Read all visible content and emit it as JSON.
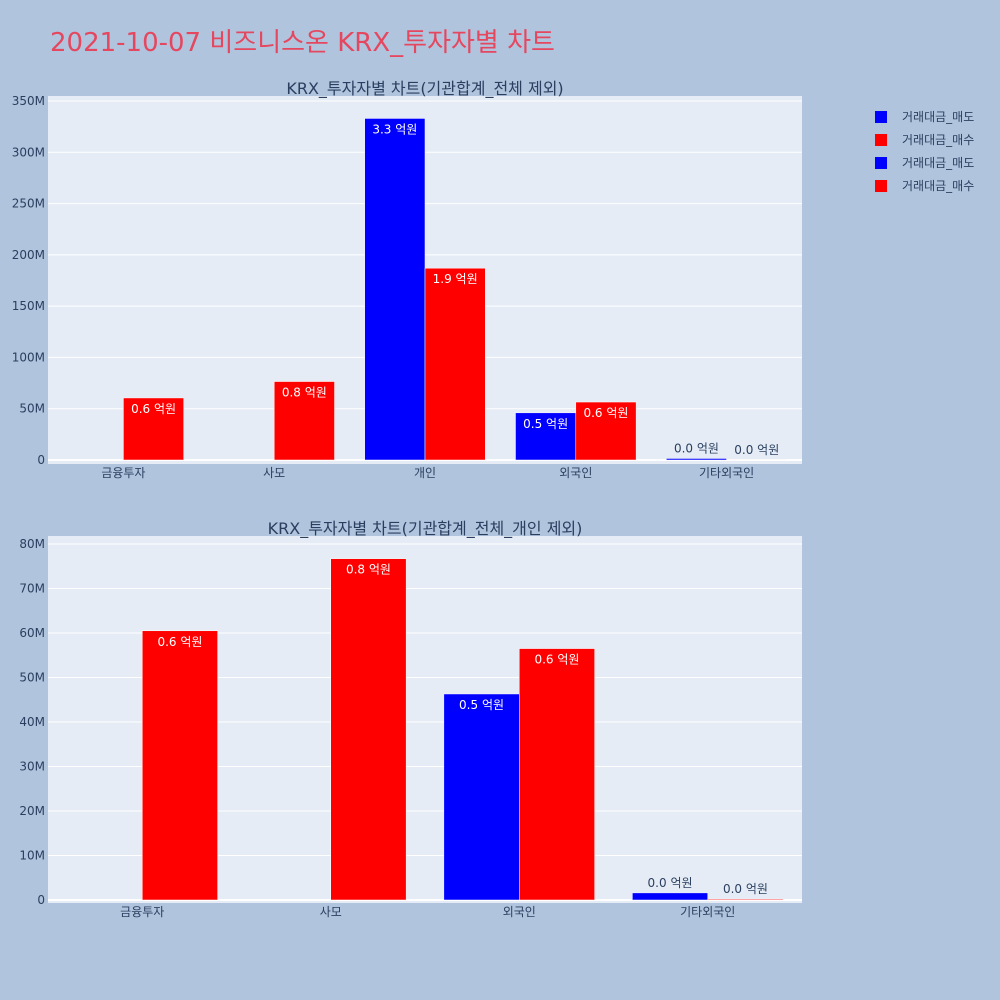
{
  "page_title": "2021-10-07 비즈니스온 KRX_투자자별 차트",
  "legend": [
    {
      "label": "거래대금_매도",
      "color": "#0000ff"
    },
    {
      "label": "거래대금_매수",
      "color": "#ff0000"
    },
    {
      "label": "거래대금_매도",
      "color": "#0000ff"
    },
    {
      "label": "거래대금_매수",
      "color": "#ff0000"
    }
  ],
  "chart_data": [
    {
      "type": "bar",
      "title": "KRX_투자자별 차트(기관합계_전체 제외)",
      "categories": [
        "금융투자",
        "사모",
        "개인",
        "외국인",
        "기타외국인"
      ],
      "series": [
        {
          "name": "거래대금_매도",
          "color": "#0000ff",
          "values": [
            0,
            0,
            333000000,
            46000000,
            1500000
          ],
          "labels": [
            "",
            "",
            "3.3 억원",
            "0.5 억원",
            "0.0 억원"
          ]
        },
        {
          "name": "거래대금_매수",
          "color": "#ff0000",
          "values": [
            60500000,
            76500000,
            187000000,
            56500000,
            200000
          ],
          "labels": [
            "0.6 억원",
            "0.8 억원",
            "1.9 억원",
            "0.6 억원",
            "0.0 억원"
          ]
        }
      ],
      "ylim": [
        0,
        350000000
      ],
      "yticks": [
        0,
        50000000,
        100000000,
        150000000,
        200000000,
        250000000,
        300000000,
        350000000
      ],
      "ytick_labels": [
        "0",
        "50M",
        "100M",
        "150M",
        "200M",
        "250M",
        "300M",
        "350M"
      ]
    },
    {
      "type": "bar",
      "title": "KRX_투자자별 차트(기관합계_전체_개인 제외)",
      "categories": [
        "금융투자",
        "사모",
        "외국인",
        "기타외국인"
      ],
      "series": [
        {
          "name": "거래대금_매도",
          "color": "#0000ff",
          "values": [
            0,
            0,
            46300000,
            1600000
          ],
          "labels": [
            "",
            "",
            "0.5 억원",
            "0.0 억원"
          ]
        },
        {
          "name": "거래대금_매수",
          "color": "#ff0000",
          "values": [
            60500000,
            76700000,
            56500000,
            200000
          ],
          "labels": [
            "0.6 억원",
            "0.8 억원",
            "0.6 억원",
            "0.0 억원"
          ]
        }
      ],
      "ylim": [
        0,
        80000000
      ],
      "yticks": [
        0,
        10000000,
        20000000,
        30000000,
        40000000,
        50000000,
        60000000,
        70000000,
        80000000
      ],
      "ytick_labels": [
        "0",
        "10M",
        "20M",
        "30M",
        "40M",
        "50M",
        "60M",
        "70M",
        "80M"
      ]
    }
  ]
}
